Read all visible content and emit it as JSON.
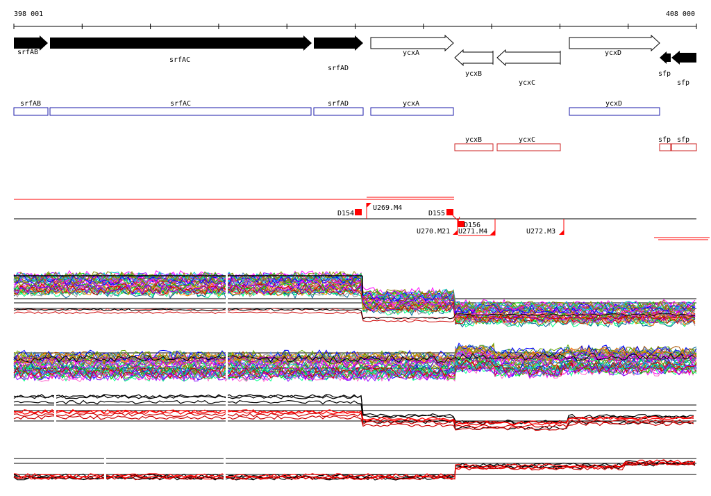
{
  "ruler": {
    "start_label": "398 001",
    "end_label": "408 000"
  },
  "genes_top": [
    {
      "name": "srfAB",
      "strand": "+",
      "style": "filled"
    },
    {
      "name": "srfAC",
      "strand": "+",
      "style": "filled"
    },
    {
      "name": "srfAD",
      "strand": "+",
      "style": "filled"
    },
    {
      "name": "ycxA",
      "strand": "+",
      "style": "outline"
    },
    {
      "name": "ycxB",
      "strand": "-",
      "style": "outline"
    },
    {
      "name": "ycxC",
      "strand": "-",
      "style": "outline"
    },
    {
      "name": "ycxD",
      "strand": "+",
      "style": "outline"
    },
    {
      "name": "sfp",
      "strand": "-",
      "style": "filled"
    },
    {
      "name": "sfp",
      "strand": "-",
      "style": "filled"
    }
  ],
  "forward_boxes": [
    "srfAB",
    "srfAC",
    "srfAD",
    "ycxA",
    "ycxD"
  ],
  "reverse_boxes": [
    "ycxB",
    "ycxC",
    "sfp",
    "sfp"
  ],
  "features": {
    "D_markers": [
      "D154",
      "D155",
      "D156"
    ],
    "U_markers": [
      "U269.M4",
      "U270.M21",
      "U271.M4",
      "U272.M3"
    ]
  },
  "colors": {
    "forward_box": "#1a1aa8",
    "reverse_box": "#cc2222",
    "feature": "#ff0000",
    "gene_fill": "#000000"
  }
}
